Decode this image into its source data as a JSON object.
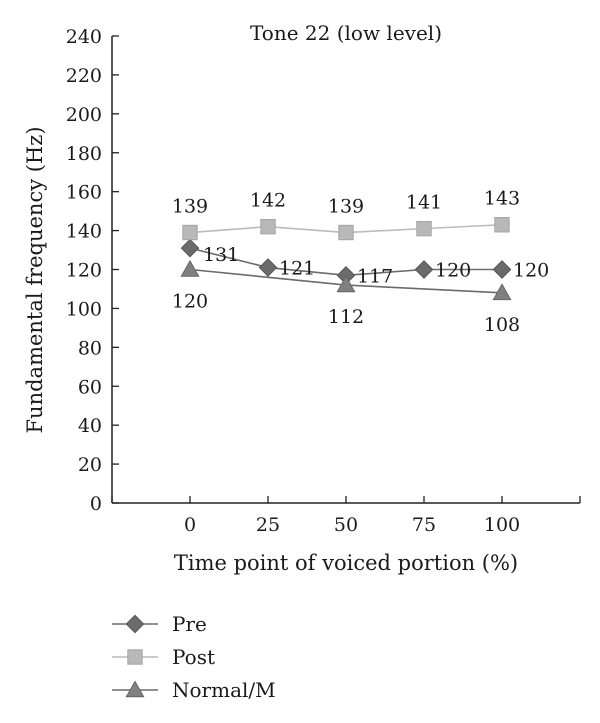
{
  "chart_data": {
    "type": "line",
    "title": "Tone 22 (low level)",
    "xlabel": "Time point of voiced portion (%)",
    "ylabel": "Fundamental frequency (Hz)",
    "x": [
      0,
      25,
      50,
      75,
      100
    ],
    "xlim": [
      -25,
      125
    ],
    "ylim": [
      0,
      240
    ],
    "yticks": [
      0,
      20,
      40,
      60,
      80,
      100,
      120,
      140,
      160,
      180,
      200,
      220,
      240
    ],
    "xticks": [
      0,
      25,
      50,
      75,
      100
    ],
    "grid": false,
    "legend_position": "bottom-left",
    "series": [
      {
        "name": "Pre",
        "marker": "diamond",
        "color": "#6b6b6b",
        "x": [
          0,
          25,
          50,
          75,
          100
        ],
        "values": [
          131,
          121,
          117,
          120,
          120
        ],
        "labels": [
          "131",
          "121",
          "117",
          "120",
          "120"
        ]
      },
      {
        "name": "Post",
        "marker": "square",
        "color": "#b5b5b5",
        "x": [
          0,
          25,
          50,
          75,
          100
        ],
        "values": [
          139,
          142,
          139,
          141,
          143
        ],
        "labels": [
          "139",
          "142",
          "139",
          "141",
          "143"
        ]
      },
      {
        "name": "Normal/M",
        "marker": "triangle",
        "color": "#7a7a7a",
        "x": [
          0,
          50,
          100
        ],
        "values": [
          120,
          112,
          108
        ],
        "labels": [
          "120",
          "112",
          "108"
        ]
      }
    ]
  }
}
